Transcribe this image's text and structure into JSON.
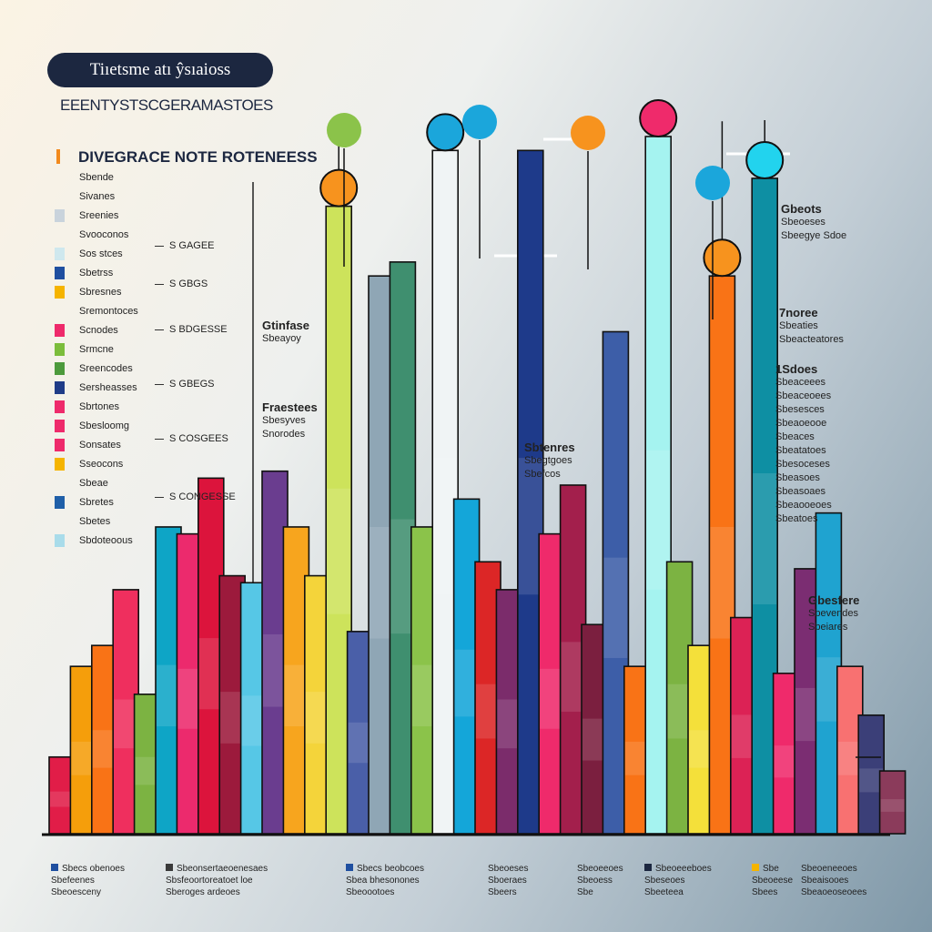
{
  "header": {
    "title": "Tiıetsme atı ŷsıaioss",
    "subtitle": "EEENTYSTSCGERAMASTOES"
  },
  "legend": {
    "heading": "DIVEGRACE NOTE ROTENEESS",
    "items": [
      {
        "label": "Sbende",
        "color": ""
      },
      {
        "label": "Sivanes",
        "color": ""
      },
      {
        "label": "Sreenies",
        "color": "#c9d3dc"
      },
      {
        "label": "Svooconos",
        "color": ""
      },
      {
        "label": "Sos stces",
        "color": "#cfe8ee"
      },
      {
        "label": "Sbetrss",
        "color": "#1f4fa0"
      },
      {
        "label": "Sbresnes",
        "color": "#f5b400"
      },
      {
        "label": "Sremontoces",
        "color": ""
      },
      {
        "label": "Scnodes",
        "color": "#ee2a6b"
      },
      {
        "label": "Srmcne",
        "color": "#7bbd3b"
      },
      {
        "label": "Sreencodes",
        "color": "#4c9a3c"
      },
      {
        "label": "Sersheasses",
        "color": "#1f3c88"
      },
      {
        "label": "Sbrtones",
        "color": "#ee2a6b"
      },
      {
        "label": "Sbesloomg",
        "color": "#ee2a6b"
      },
      {
        "label": "Sonsates",
        "color": "#ee2a6b"
      },
      {
        "label": "Sseocons",
        "color": "#f5b400"
      },
      {
        "label": "Sbeae",
        "color": ""
      },
      {
        "label": "Sbretes",
        "color": "#1f5fa8"
      },
      {
        "label": "Sbetes",
        "color": ""
      },
      {
        "label": "Sbdoteoous",
        "color": "#a9dcea"
      }
    ]
  },
  "values_list": [
    "S GAGEE",
    "S GBGS",
    "S BDGESSE",
    "S GBEGS",
    "S COSGEES",
    "S CONGESSE"
  ],
  "annotations": [
    {
      "title": "Gtinfase",
      "lines": [
        "Sbeayoy"
      ]
    },
    {
      "title": "Fraestees",
      "lines": [
        "Sbesyves",
        "Snorodes"
      ]
    },
    {
      "title": "Sbtenres",
      "lines": [
        "Sbegtgoes",
        "Sbefcos"
      ]
    },
    {
      "title": "Gbeots",
      "lines": [
        "Sbeoeses",
        "Sbeegye Sdoe"
      ]
    },
    {
      "title": "7noree",
      "lines": [
        "Sbeaties",
        "Sbeacteatores"
      ]
    },
    {
      "title": "1Sdoes",
      "lines": [
        "Sbeaceees",
        "Sbeaceoees",
        "Sbesesces",
        "Sbeaoeooe",
        "Sbeaces",
        "Sbeatatoes",
        "Sbesoceses",
        "Sbeasoes",
        "Sbeasoaes",
        "Sbeaooeoes",
        "Sbeatoes"
      ]
    },
    {
      "title": "Gbesfere",
      "lines": [
        "Sbevendes",
        "Sbeiares"
      ]
    }
  ],
  "footer": [
    {
      "color": "#1f4fa0",
      "lines": [
        "Sbecs obenoes",
        "Sbefeenes",
        "Sbeoesceny"
      ]
    },
    {
      "color": "#3a3a3a",
      "lines": [
        "Sbeonsertaeoenesaes",
        "Sbsfeoortoreatoet loe",
        "Sberoges ardeoes"
      ]
    },
    {
      "color": "#1f4fa0",
      "lines": [
        "Sbecs beobcoes",
        "Sbea bhesonones",
        "Sbeoootoes"
      ]
    },
    {
      "color": "",
      "lines": [
        "Sbeoeses",
        "Sboeraes",
        "Sbeers"
      ]
    },
    {
      "color": "",
      "lines": [
        "Sbeoeeoes",
        "Sbeoess",
        "Sbe"
      ]
    },
    {
      "color": "#1c2740",
      "lines": [
        "Sbeoeeeboes",
        "Sbeseoes",
        "Sbeeteea"
      ]
    },
    {
      "color": "#f5b400",
      "lines": [
        "Sbe",
        "Sbeoeese",
        "Sbees"
      ]
    },
    {
      "color": "",
      "lines": [
        "Sbeoeneeoes",
        "Sbeaisooes",
        "Sbeaoeoseoees"
      ]
    }
  ],
  "chart_data": {
    "type": "bar",
    "ylim": [
      0,
      100
    ],
    "grid": false,
    "legend_position": "left",
    "bars": [
      {
        "value": 11,
        "color": "#e11d48"
      },
      {
        "value": 24,
        "color": "#f59e0b"
      },
      {
        "value": 27,
        "color": "#f97316"
      },
      {
        "value": 35,
        "color": "#ef2f5e"
      },
      {
        "value": 20,
        "color": "#7cb342"
      },
      {
        "value": 44,
        "color": "#0ea5c6"
      },
      {
        "value": 43,
        "color": "#ec2a6d"
      },
      {
        "value": 51,
        "color": "#dc143c"
      },
      {
        "value": 37,
        "color": "#9c1a3c"
      },
      {
        "value": 36,
        "color": "#56c7e6"
      },
      {
        "value": 52,
        "color": "#6a3d8f"
      },
      {
        "value": 44,
        "color": "#f7a51e"
      },
      {
        "value": 37,
        "color": "#f4d43a"
      },
      {
        "value": 90,
        "color": "#cde35b",
        "marker": "#f7931e"
      },
      {
        "value": 29,
        "color": "#4a5fa8"
      },
      {
        "value": 80,
        "color": "#8fa6b5"
      },
      {
        "value": 82,
        "color": "#3f8f6f"
      },
      {
        "value": 44,
        "color": "#8bc34a"
      },
      {
        "value": 98,
        "color": "#f0f4f5",
        "marker": "#1ba6db"
      },
      {
        "value": 48,
        "color": "#14a6d9"
      },
      {
        "value": 39,
        "color": "#dc2626"
      },
      {
        "value": 35,
        "color": "#7b2c6b"
      },
      {
        "value": 98,
        "color": "#1e3a8a"
      },
      {
        "value": 43,
        "color": "#ef2a6b"
      },
      {
        "value": 50,
        "color": "#a31f4c"
      },
      {
        "value": 30,
        "color": "#7b1f3f"
      },
      {
        "value": 72,
        "color": "#3d5ea8"
      },
      {
        "value": 24,
        "color": "#f97316"
      },
      {
        "value": 100,
        "color": "#a5f3f0",
        "marker": "#ef2a6b"
      },
      {
        "value": 39,
        "color": "#7cb342"
      },
      {
        "value": 27,
        "color": "#f4e03a"
      },
      {
        "value": 80,
        "color": "#f97316",
        "marker": "#f7931e"
      },
      {
        "value": 31,
        "color": "#dc2255"
      },
      {
        "value": 94,
        "color": "#0e8fa3",
        "marker": "#22d3ee"
      },
      {
        "value": 23,
        "color": "#ef2a6b"
      },
      {
        "value": 38,
        "color": "#7b2d72"
      },
      {
        "value": 46,
        "color": "#1fa3d0"
      },
      {
        "value": 24,
        "color": "#f87171"
      },
      {
        "value": 17,
        "color": "#3b3f78"
      },
      {
        "value": 9,
        "color": "#8b3b5b"
      }
    ]
  }
}
